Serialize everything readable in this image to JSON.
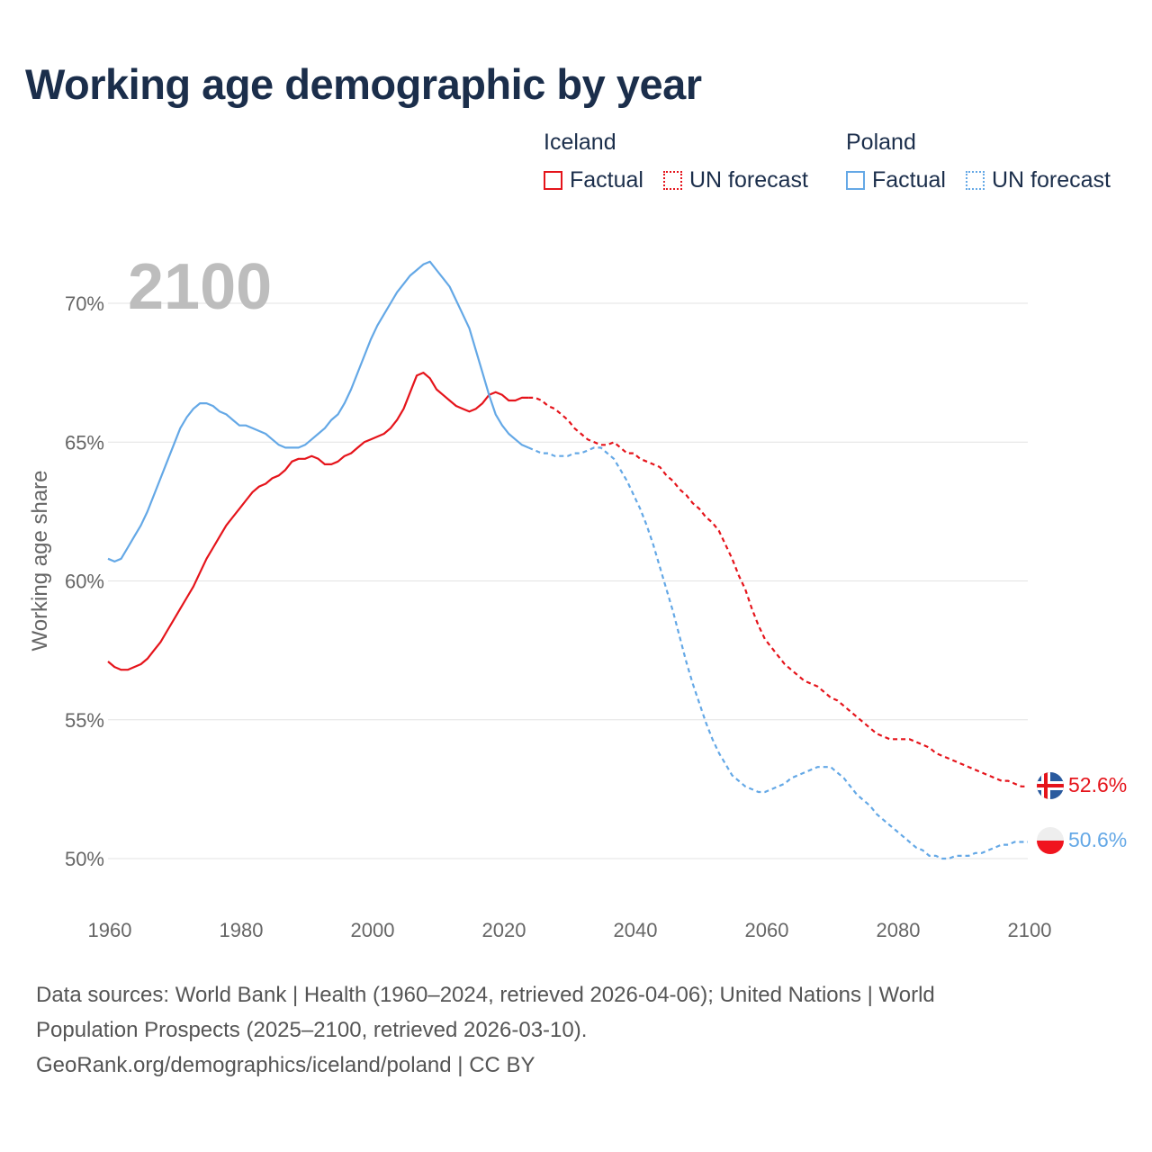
{
  "title": "Working age demographic by year",
  "legend": {
    "groups": [
      {
        "name": "Iceland",
        "factual_label": "Factual",
        "forecast_label": "UN forecast",
        "color": "#e5141b"
      },
      {
        "name": "Poland",
        "factual_label": "Factual",
        "forecast_label": "UN forecast",
        "color": "#64a8e6"
      }
    ]
  },
  "year_display": "2100",
  "footer": {
    "line1": "Data sources: World Bank | Health (1960–2024, retrieved 2026-04-06); United Nations | World",
    "line2": "Population Prospects (2025–2100, retrieved 2026-03-10).",
    "line3": "GeoRank.org/demographics/iceland/poland | CC BY"
  },
  "chart_data": {
    "type": "line",
    "title": "Working age demographic by year",
    "xlabel": "",
    "ylabel": "Working age share",
    "xlim": [
      1960,
      2100
    ],
    "ylim": [
      50,
      72
    ],
    "x_ticks": [
      1960,
      1980,
      2000,
      2020,
      2040,
      2060,
      2080,
      2100
    ],
    "y_ticks": [
      50,
      55,
      60,
      65,
      70
    ],
    "y_tick_labels": [
      "50%",
      "55%",
      "60%",
      "65%",
      "70%"
    ],
    "x_tick_labels": [
      "1960",
      "1980",
      "2000",
      "2020",
      "2040",
      "2060",
      "2080",
      "2100"
    ],
    "grid": true,
    "factual_range": [
      1960,
      2024
    ],
    "forecast_range": [
      2024,
      2100
    ],
    "series": [
      {
        "name": "Iceland",
        "color": "#e5141b",
        "end_label": "52.6%",
        "points": [
          [
            1960,
            57.1
          ],
          [
            1961,
            56.9
          ],
          [
            1962,
            56.8
          ],
          [
            1963,
            56.8
          ],
          [
            1964,
            56.9
          ],
          [
            1965,
            57.0
          ],
          [
            1966,
            57.2
          ],
          [
            1967,
            57.5
          ],
          [
            1968,
            57.8
          ],
          [
            1969,
            58.2
          ],
          [
            1970,
            58.6
          ],
          [
            1971,
            59.0
          ],
          [
            1972,
            59.4
          ],
          [
            1973,
            59.8
          ],
          [
            1974,
            60.3
          ],
          [
            1975,
            60.8
          ],
          [
            1976,
            61.2
          ],
          [
            1977,
            61.6
          ],
          [
            1978,
            62.0
          ],
          [
            1979,
            62.3
          ],
          [
            1980,
            62.6
          ],
          [
            1981,
            62.9
          ],
          [
            1982,
            63.2
          ],
          [
            1983,
            63.4
          ],
          [
            1984,
            63.5
          ],
          [
            1985,
            63.7
          ],
          [
            1986,
            63.8
          ],
          [
            1987,
            64.0
          ],
          [
            1988,
            64.3
          ],
          [
            1989,
            64.4
          ],
          [
            1990,
            64.4
          ],
          [
            1991,
            64.5
          ],
          [
            1992,
            64.4
          ],
          [
            1993,
            64.2
          ],
          [
            1994,
            64.2
          ],
          [
            1995,
            64.3
          ],
          [
            1996,
            64.5
          ],
          [
            1997,
            64.6
          ],
          [
            1998,
            64.8
          ],
          [
            1999,
            65.0
          ],
          [
            2000,
            65.1
          ],
          [
            2001,
            65.2
          ],
          [
            2002,
            65.3
          ],
          [
            2003,
            65.5
          ],
          [
            2004,
            65.8
          ],
          [
            2005,
            66.2
          ],
          [
            2006,
            66.8
          ],
          [
            2007,
            67.4
          ],
          [
            2008,
            67.5
          ],
          [
            2009,
            67.3
          ],
          [
            2010,
            66.9
          ],
          [
            2011,
            66.7
          ],
          [
            2012,
            66.5
          ],
          [
            2013,
            66.3
          ],
          [
            2014,
            66.2
          ],
          [
            2015,
            66.1
          ],
          [
            2016,
            66.2
          ],
          [
            2017,
            66.4
          ],
          [
            2018,
            66.7
          ],
          [
            2019,
            66.8
          ],
          [
            2020,
            66.7
          ],
          [
            2021,
            66.5
          ],
          [
            2022,
            66.5
          ],
          [
            2023,
            66.6
          ],
          [
            2024,
            66.6
          ],
          [
            2025,
            66.6
          ],
          [
            2026,
            66.5
          ],
          [
            2027,
            66.3
          ],
          [
            2028,
            66.2
          ],
          [
            2029,
            66.0
          ],
          [
            2030,
            65.8
          ],
          [
            2031,
            65.5
          ],
          [
            2032,
            65.3
          ],
          [
            2033,
            65.1
          ],
          [
            2034,
            65.0
          ],
          [
            2035,
            64.9
          ],
          [
            2036,
            64.9
          ],
          [
            2037,
            65.0
          ],
          [
            2038,
            64.8
          ],
          [
            2039,
            64.6
          ],
          [
            2040,
            64.6
          ],
          [
            2041,
            64.4
          ],
          [
            2042,
            64.3
          ],
          [
            2043,
            64.2
          ],
          [
            2044,
            64.1
          ],
          [
            2045,
            63.8
          ],
          [
            2046,
            63.6
          ],
          [
            2047,
            63.3
          ],
          [
            2048,
            63.1
          ],
          [
            2049,
            62.8
          ],
          [
            2050,
            62.6
          ],
          [
            2051,
            62.3
          ],
          [
            2052,
            62.1
          ],
          [
            2053,
            61.8
          ],
          [
            2054,
            61.3
          ],
          [
            2055,
            60.8
          ],
          [
            2056,
            60.2
          ],
          [
            2057,
            59.7
          ],
          [
            2058,
            59.0
          ],
          [
            2059,
            58.4
          ],
          [
            2060,
            57.9
          ],
          [
            2061,
            57.6
          ],
          [
            2062,
            57.3
          ],
          [
            2063,
            57.0
          ],
          [
            2064,
            56.8
          ],
          [
            2065,
            56.6
          ],
          [
            2066,
            56.4
          ],
          [
            2067,
            56.3
          ],
          [
            2068,
            56.2
          ],
          [
            2069,
            56.0
          ],
          [
            2070,
            55.8
          ],
          [
            2071,
            55.7
          ],
          [
            2072,
            55.5
          ],
          [
            2073,
            55.3
          ],
          [
            2074,
            55.1
          ],
          [
            2075,
            54.9
          ],
          [
            2076,
            54.7
          ],
          [
            2077,
            54.5
          ],
          [
            2078,
            54.4
          ],
          [
            2079,
            54.3
          ],
          [
            2080,
            54.3
          ],
          [
            2081,
            54.3
          ],
          [
            2082,
            54.3
          ],
          [
            2083,
            54.2
          ],
          [
            2084,
            54.1
          ],
          [
            2085,
            54.0
          ],
          [
            2086,
            53.8
          ],
          [
            2087,
            53.7
          ],
          [
            2088,
            53.6
          ],
          [
            2089,
            53.5
          ],
          [
            2090,
            53.4
          ],
          [
            2091,
            53.3
          ],
          [
            2092,
            53.2
          ],
          [
            2093,
            53.1
          ],
          [
            2094,
            53.0
          ],
          [
            2095,
            52.9
          ],
          [
            2096,
            52.8
          ],
          [
            2097,
            52.8
          ],
          [
            2098,
            52.7
          ],
          [
            2099,
            52.6
          ],
          [
            2100,
            52.6
          ]
        ]
      },
      {
        "name": "Poland",
        "color": "#64a8e6",
        "end_label": "50.6%",
        "points": [
          [
            1960,
            60.8
          ],
          [
            1961,
            60.7
          ],
          [
            1962,
            60.8
          ],
          [
            1963,
            61.2
          ],
          [
            1964,
            61.6
          ],
          [
            1965,
            62.0
          ],
          [
            1966,
            62.5
          ],
          [
            1967,
            63.1
          ],
          [
            1968,
            63.7
          ],
          [
            1969,
            64.3
          ],
          [
            1970,
            64.9
          ],
          [
            1971,
            65.5
          ],
          [
            1972,
            65.9
          ],
          [
            1973,
            66.2
          ],
          [
            1974,
            66.4
          ],
          [
            1975,
            66.4
          ],
          [
            1976,
            66.3
          ],
          [
            1977,
            66.1
          ],
          [
            1978,
            66.0
          ],
          [
            1979,
            65.8
          ],
          [
            1980,
            65.6
          ],
          [
            1981,
            65.6
          ],
          [
            1982,
            65.5
          ],
          [
            1983,
            65.4
          ],
          [
            1984,
            65.3
          ],
          [
            1985,
            65.1
          ],
          [
            1986,
            64.9
          ],
          [
            1987,
            64.8
          ],
          [
            1988,
            64.8
          ],
          [
            1989,
            64.8
          ],
          [
            1990,
            64.9
          ],
          [
            1991,
            65.1
          ],
          [
            1992,
            65.3
          ],
          [
            1993,
            65.5
          ],
          [
            1994,
            65.8
          ],
          [
            1995,
            66.0
          ],
          [
            1996,
            66.4
          ],
          [
            1997,
            66.9
          ],
          [
            1998,
            67.5
          ],
          [
            1999,
            68.1
          ],
          [
            2000,
            68.7
          ],
          [
            2001,
            69.2
          ],
          [
            2002,
            69.6
          ],
          [
            2003,
            70.0
          ],
          [
            2004,
            70.4
          ],
          [
            2005,
            70.7
          ],
          [
            2006,
            71.0
          ],
          [
            2007,
            71.2
          ],
          [
            2008,
            71.4
          ],
          [
            2009,
            71.5
          ],
          [
            2010,
            71.2
          ],
          [
            2011,
            70.9
          ],
          [
            2012,
            70.6
          ],
          [
            2013,
            70.1
          ],
          [
            2014,
            69.6
          ],
          [
            2015,
            69.1
          ],
          [
            2016,
            68.3
          ],
          [
            2017,
            67.5
          ],
          [
            2018,
            66.7
          ],
          [
            2019,
            66.0
          ],
          [
            2020,
            65.6
          ],
          [
            2021,
            65.3
          ],
          [
            2022,
            65.1
          ],
          [
            2023,
            64.9
          ],
          [
            2024,
            64.8
          ],
          [
            2025,
            64.7
          ],
          [
            2026,
            64.6
          ],
          [
            2027,
            64.6
          ],
          [
            2028,
            64.5
          ],
          [
            2029,
            64.5
          ],
          [
            2030,
            64.5
          ],
          [
            2031,
            64.6
          ],
          [
            2032,
            64.6
          ],
          [
            2033,
            64.7
          ],
          [
            2034,
            64.8
          ],
          [
            2035,
            64.8
          ],
          [
            2036,
            64.6
          ],
          [
            2037,
            64.4
          ],
          [
            2038,
            64.0
          ],
          [
            2039,
            63.6
          ],
          [
            2040,
            63.1
          ],
          [
            2041,
            62.6
          ],
          [
            2042,
            62.0
          ],
          [
            2043,
            61.3
          ],
          [
            2044,
            60.5
          ],
          [
            2045,
            59.7
          ],
          [
            2046,
            58.9
          ],
          [
            2047,
            58.0
          ],
          [
            2048,
            57.1
          ],
          [
            2049,
            56.3
          ],
          [
            2050,
            55.6
          ],
          [
            2051,
            54.9
          ],
          [
            2052,
            54.3
          ],
          [
            2053,
            53.8
          ],
          [
            2054,
            53.4
          ],
          [
            2055,
            53.0
          ],
          [
            2056,
            52.8
          ],
          [
            2057,
            52.6
          ],
          [
            2058,
            52.5
          ],
          [
            2059,
            52.4
          ],
          [
            2060,
            52.4
          ],
          [
            2061,
            52.5
          ],
          [
            2062,
            52.6
          ],
          [
            2063,
            52.7
          ],
          [
            2064,
            52.9
          ],
          [
            2065,
            53.0
          ],
          [
            2066,
            53.1
          ],
          [
            2067,
            53.2
          ],
          [
            2068,
            53.3
          ],
          [
            2069,
            53.3
          ],
          [
            2070,
            53.3
          ],
          [
            2071,
            53.1
          ],
          [
            2072,
            52.9
          ],
          [
            2073,
            52.6
          ],
          [
            2074,
            52.3
          ],
          [
            2075,
            52.1
          ],
          [
            2076,
            51.9
          ],
          [
            2077,
            51.6
          ],
          [
            2078,
            51.4
          ],
          [
            2079,
            51.2
          ],
          [
            2080,
            51.0
          ],
          [
            2081,
            50.8
          ],
          [
            2082,
            50.6
          ],
          [
            2083,
            50.4
          ],
          [
            2084,
            50.3
          ],
          [
            2085,
            50.1
          ],
          [
            2086,
            50.1
          ],
          [
            2087,
            50.0
          ],
          [
            2088,
            50.0
          ],
          [
            2089,
            50.1
          ],
          [
            2090,
            50.1
          ],
          [
            2091,
            50.1
          ],
          [
            2092,
            50.2
          ],
          [
            2093,
            50.2
          ],
          [
            2094,
            50.3
          ],
          [
            2095,
            50.4
          ],
          [
            2096,
            50.5
          ],
          [
            2097,
            50.5
          ],
          [
            2098,
            50.6
          ],
          [
            2099,
            50.6
          ],
          [
            2100,
            50.6
          ]
        ]
      }
    ]
  }
}
